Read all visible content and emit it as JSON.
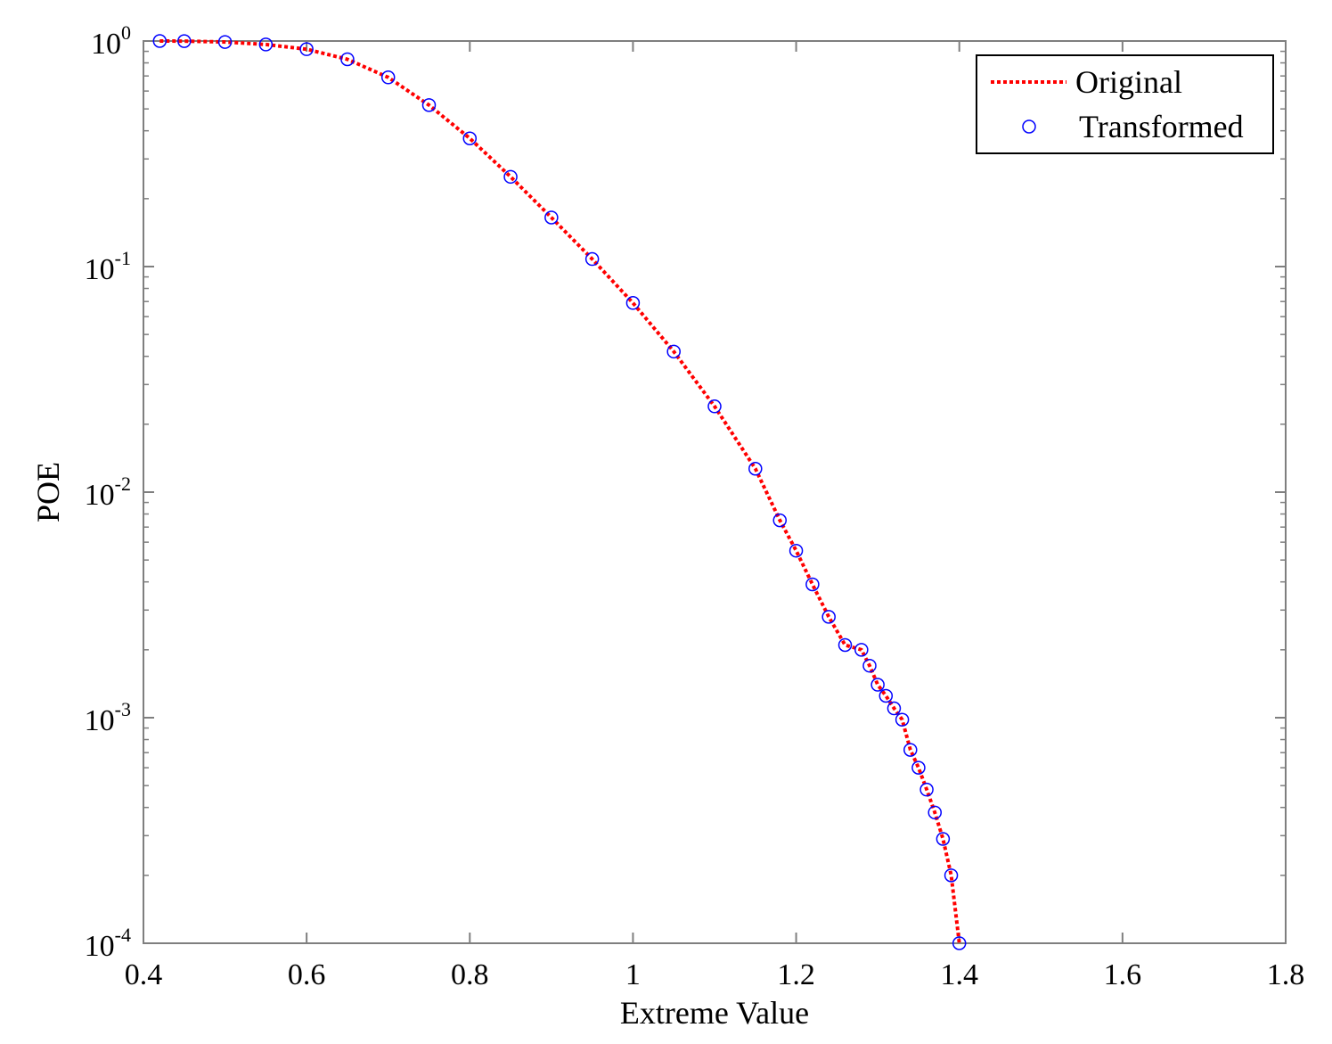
{
  "chart_data": {
    "type": "line",
    "xlabel": "Extreme Value",
    "ylabel": "POE",
    "xlim": [
      0.4,
      1.8
    ],
    "ylim": [
      0.0001,
      1
    ],
    "yscale": "log",
    "grid": false,
    "legend_position": "top-right",
    "x_ticks": [
      0.4,
      0.6,
      0.8,
      1,
      1.2,
      1.4,
      1.6,
      1.8
    ],
    "x_tick_labels": [
      "0.4",
      "0.6",
      "0.8",
      "1",
      "1.2",
      "1.4",
      "1.6",
      "1.8"
    ],
    "y_ticks": [
      {
        "value": 1,
        "base": "10",
        "exp": "0"
      },
      {
        "value": 0.1,
        "base": "10",
        "exp": "-1"
      },
      {
        "value": 0.01,
        "base": "10",
        "exp": "-2"
      },
      {
        "value": 0.001,
        "base": "10",
        "exp": "-3"
      },
      {
        "value": 0.0001,
        "base": "10",
        "exp": "-4"
      }
    ],
    "series": [
      {
        "name": "Original",
        "style": "dotted-line",
        "color": "#ff0000",
        "x": [
          0.42,
          0.45,
          0.5,
          0.55,
          0.6,
          0.65,
          0.7,
          0.75,
          0.8,
          0.85,
          0.9,
          0.95,
          1.0,
          1.05,
          1.1,
          1.15,
          1.18,
          1.2,
          1.22,
          1.24,
          1.26,
          1.28,
          1.29,
          1.3,
          1.31,
          1.32,
          1.33,
          1.34,
          1.35,
          1.36,
          1.37,
          1.38,
          1.39,
          1.4
        ],
        "y": [
          1.0,
          0.999,
          0.99,
          0.965,
          0.92,
          0.83,
          0.69,
          0.52,
          0.37,
          0.25,
          0.165,
          0.108,
          0.069,
          0.042,
          0.024,
          0.0127,
          0.0075,
          0.0055,
          0.0039,
          0.0028,
          0.0021,
          0.002,
          0.0017,
          0.0014,
          0.00125,
          0.0011,
          0.00098,
          0.00072,
          0.0006,
          0.00048,
          0.00038,
          0.00029,
          0.0002,
          0.0001
        ]
      },
      {
        "name": "Transformed",
        "style": "circle-markers",
        "color": "#0000ff",
        "x": [
          0.42,
          0.45,
          0.5,
          0.55,
          0.6,
          0.65,
          0.7,
          0.75,
          0.8,
          0.85,
          0.9,
          0.95,
          1.0,
          1.05,
          1.1,
          1.15,
          1.18,
          1.2,
          1.22,
          1.24,
          1.26,
          1.28,
          1.29,
          1.3,
          1.31,
          1.32,
          1.33,
          1.34,
          1.35,
          1.36,
          1.37,
          1.38,
          1.39,
          1.4
        ],
        "y": [
          1.0,
          0.999,
          0.99,
          0.965,
          0.92,
          0.83,
          0.69,
          0.52,
          0.37,
          0.25,
          0.165,
          0.108,
          0.069,
          0.042,
          0.024,
          0.0127,
          0.0075,
          0.0055,
          0.0039,
          0.0028,
          0.0021,
          0.002,
          0.0017,
          0.0014,
          0.00125,
          0.0011,
          0.00098,
          0.00072,
          0.0006,
          0.00048,
          0.00038,
          0.00029,
          0.0002,
          0.0001
        ]
      }
    ]
  }
}
